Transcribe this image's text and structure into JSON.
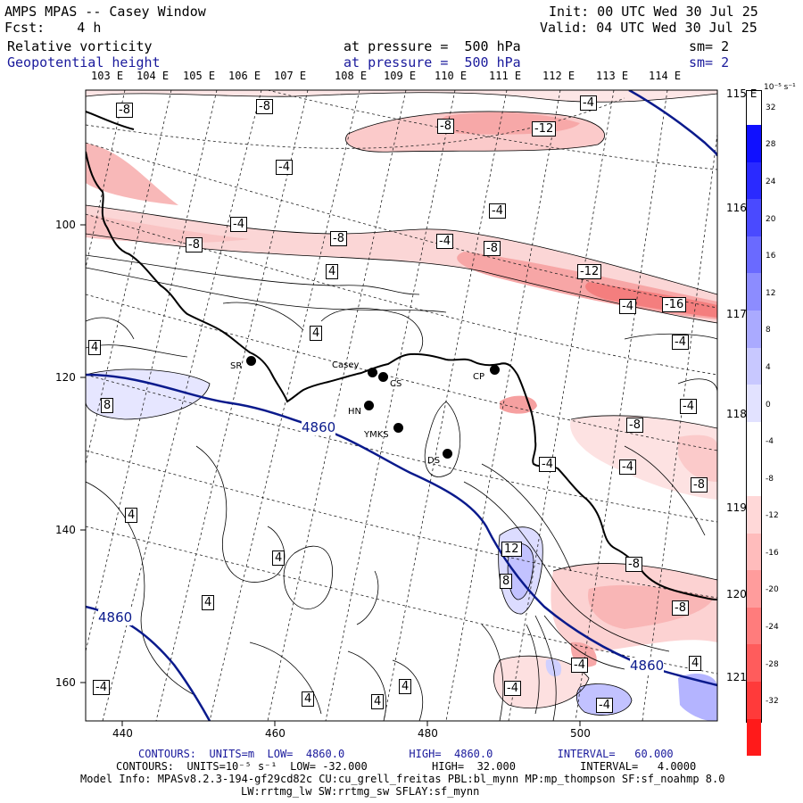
{
  "header": {
    "title": "AMPS MPAS -- Casey Window",
    "fcst": "Fcst:    4 h",
    "init": "Init: 00 UTC Wed 30 Jul 25",
    "valid": "Valid: 04 UTC Wed 30 Jul 25",
    "field1_name": "Relative vorticity",
    "field1_level": "at pressure =  500 hPa",
    "field1_sm": "sm= 2",
    "field2_name": "Geopotential height",
    "field2_level": "at pressure =  500 hPa",
    "field2_sm": "sm= 2"
  },
  "longitude_top": [
    "103 E",
    "104 E",
    "105 E",
    "106 E",
    "107 E",
    "108 E",
    "109 E",
    "110 E",
    "111 E",
    "112 E",
    "113 E",
    "114 E"
  ],
  "longitude_right": [
    "115 E",
    "116 E",
    "117 E",
    "118 E",
    "119 E",
    "120 E",
    "121 E"
  ],
  "y_axis_ticks": [
    "100",
    "120",
    "140",
    "160"
  ],
  "x_axis_ticks": [
    "440",
    "460",
    "480",
    "500"
  ],
  "colorbar": {
    "unit": "10⁻⁵ s⁻¹",
    "labels": [
      "32",
      "28",
      "24",
      "20",
      "16",
      "12",
      "8",
      "4",
      "0",
      "-4",
      "-8",
      "-12",
      "-16",
      "-20",
      "-24",
      "-28",
      "-32"
    ],
    "colors": [
      "#1010ff",
      "#2a2aff",
      "#4a4aff",
      "#6a6aff",
      "#8c8cff",
      "#aaaaff",
      "#c8c8ff",
      "#e2e2ff",
      "#ffffff",
      "#ffffff",
      "#ffd8d8",
      "#ffbcbc",
      "#ff9c9c",
      "#ff7c7c",
      "#ff5c5c",
      "#ff3a3a",
      "#ff1a1a"
    ]
  },
  "stations": [
    "SR",
    "Casey",
    "CS",
    "HN",
    "YMKS",
    "DS",
    "CP"
  ],
  "contour_labels": {
    "vorticity": [
      "-8",
      "-8",
      "-8",
      "-12",
      "-4",
      "-4",
      "-4",
      "-4",
      "-8",
      "-8",
      "-4",
      "-8",
      "-12",
      "4",
      "-4",
      "-16",
      "4",
      "-4",
      "4",
      "8",
      "-4",
      "-8",
      "-4",
      "-8",
      "-4",
      "4",
      "12",
      "8",
      "-8",
      "-8",
      "4",
      "-4",
      "4",
      "4",
      "-4",
      "4",
      "4",
      "-4",
      "-4",
      "4"
    ],
    "height": [
      "4860",
      "4860",
      "4860"
    ]
  },
  "footer": {
    "line1": "CONTOURS:  UNITS=m  LOW=  4860.0          HIGH=  4860.0          INTERVAL=   60.000",
    "line2": "CONTOURS:  UNITS=10⁻⁵ s⁻¹  LOW= -32.000          HIGH=  32.000          INTERVAL=   4.0000",
    "line3": "Model Info: MPASv8.2.3-194-gf29cd82c CU:cu_grell_freitas PBL:bl_mynn MP:mp_thompson SF:sf_noahmp 8.0",
    "line4": "LW:rrtmg_lw SW:rrtmg_sw SFLAY:sf_mynn"
  }
}
